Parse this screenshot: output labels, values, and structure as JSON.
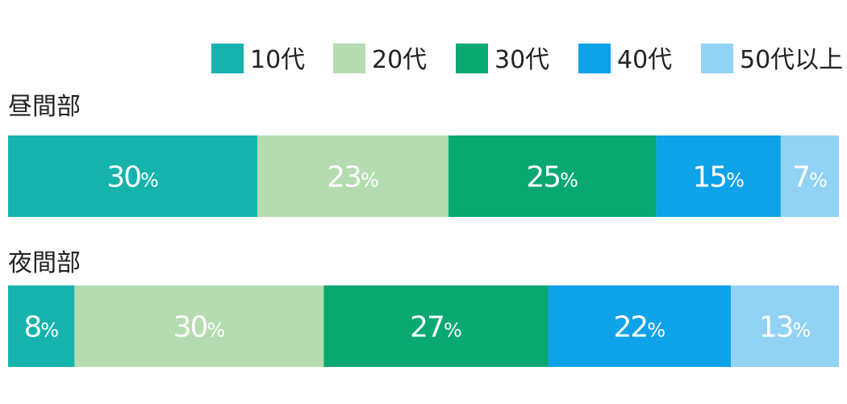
{
  "chart_data": {
    "type": "bar",
    "orientation": "horizontal",
    "stacked": "percent",
    "categories": [
      "昼間部",
      "夜間部"
    ],
    "unit": "%",
    "legend_position": "top-right",
    "series": [
      {
        "name": "10代",
        "color": "#16b3ad",
        "values": [
          30,
          8
        ]
      },
      {
        "name": "20代",
        "color": "#b4dcb0",
        "values": [
          23,
          30
        ]
      },
      {
        "name": "30代",
        "color": "#08a870",
        "values": [
          25,
          27
        ]
      },
      {
        "name": "40代",
        "color": "#0ea2e8",
        "values": [
          15,
          22
        ]
      },
      {
        "name": "50代以上",
        "color": "#92d2f4",
        "values": [
          7,
          13
        ]
      }
    ]
  }
}
